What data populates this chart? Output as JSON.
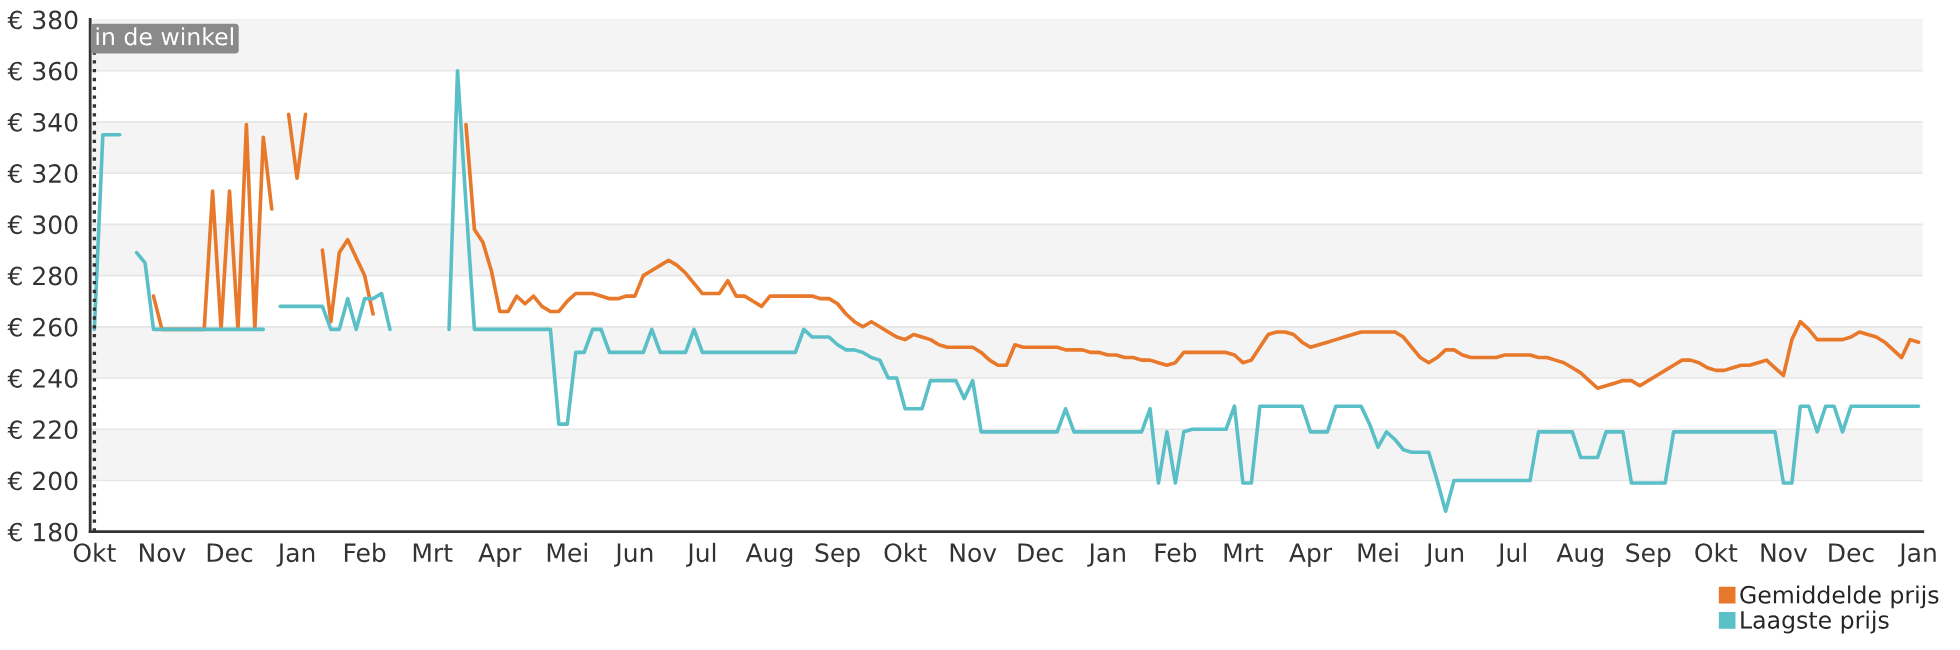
{
  "chart_data": {
    "type": "line",
    "categories": [
      "Okt",
      null,
      null,
      null,
      null,
      null,
      null,
      null,
      "Nov",
      null,
      null,
      null,
      null,
      null,
      null,
      null,
      "Dec",
      null,
      null,
      null,
      null,
      null,
      null,
      null,
      "Jan",
      null,
      null,
      null,
      null,
      null,
      null,
      null,
      "Feb",
      null,
      null,
      null,
      null,
      null,
      null,
      null,
      "Mrt",
      null,
      null,
      null,
      null,
      null,
      null,
      null,
      "Apr",
      null,
      null,
      null,
      null,
      null,
      null,
      null,
      "Mei",
      null,
      null,
      null,
      null,
      null,
      null,
      null,
      "Jun",
      null,
      null,
      null,
      null,
      null,
      null,
      null,
      "Jul",
      null,
      null,
      null,
      null,
      null,
      null,
      null,
      "Aug",
      null,
      null,
      null,
      null,
      null,
      null,
      null,
      "Sep",
      null,
      null,
      null,
      null,
      null,
      null,
      null,
      "Okt",
      null,
      null,
      null,
      null,
      null,
      null,
      null,
      "Nov",
      null,
      null,
      null,
      null,
      null,
      null,
      null,
      "Dec",
      null,
      null,
      null,
      null,
      null,
      null,
      null,
      "Jan",
      null,
      null,
      null,
      null,
      null,
      null,
      null,
      "Feb",
      null,
      null,
      null,
      null,
      null,
      null,
      null,
      "Mrt",
      null,
      null,
      null,
      null,
      null,
      null,
      null,
      "Apr",
      null,
      null,
      null,
      null,
      null,
      null,
      null,
      "Mei",
      null,
      null,
      null,
      null,
      null,
      null,
      null,
      "Jun",
      null,
      null,
      null,
      null,
      null,
      null,
      null,
      "Jul",
      null,
      null,
      null,
      null,
      null,
      null,
      null,
      "Aug",
      null,
      null,
      null,
      null,
      null,
      null,
      null,
      "Sep",
      null,
      null,
      null,
      null,
      null,
      null,
      null,
      "Okt",
      null,
      null,
      null,
      null,
      null,
      null,
      null,
      "Nov",
      null,
      null,
      null,
      null,
      null,
      null,
      null,
      "Dec",
      null,
      null,
      null,
      null,
      null,
      null,
      null,
      "Jan"
    ],
    "ylim": [
      180,
      380
    ],
    "yticks": [
      {
        "value": 180,
        "label": "€ 180"
      },
      {
        "value": 200,
        "label": "€ 200"
      },
      {
        "value": 220,
        "label": "€ 220"
      },
      {
        "value": 240,
        "label": "€ 240"
      },
      {
        "value": 260,
        "label": "€ 260"
      },
      {
        "value": 280,
        "label": "€ 280"
      },
      {
        "value": 300,
        "label": "€ 300"
      },
      {
        "value": 320,
        "label": "€ 320"
      },
      {
        "value": 340,
        "label": "€ 340"
      },
      {
        "value": 360,
        "label": "€ 360"
      },
      {
        "value": 380,
        "label": "€ 380"
      }
    ],
    "grid": "y",
    "legend": "bottom right",
    "line_style": "solid",
    "ref_lines": [
      {
        "axis": "x",
        "value": "Okt",
        "label": "in de winkel",
        "color": "#333333",
        "line_style": "dotted"
      }
    ],
    "series": [
      {
        "name": "Gemiddelde prijs",
        "color": "#e8782a",
        "values": [
          null,
          null,
          null,
          null,
          null,
          null,
          null,
          272,
          259,
          259,
          259,
          259,
          259,
          259,
          313,
          259,
          313,
          259,
          339,
          259,
          334,
          306,
          null,
          343,
          318,
          343,
          null,
          290,
          262,
          289,
          294,
          287,
          280,
          265,
          null,
          null,
          null,
          null,
          null,
          null,
          null,
          null,
          null,
          null,
          339,
          298,
          293,
          282,
          266,
          266,
          272,
          269,
          272,
          268,
          266,
          266,
          270,
          273,
          273,
          273,
          272,
          271,
          271,
          272,
          272,
          280,
          282,
          284,
          286,
          284,
          281,
          277,
          273,
          273,
          273,
          278,
          272,
          272,
          270,
          268,
          272,
          272,
          272,
          272,
          272,
          272,
          271,
          271,
          269,
          265,
          262,
          260,
          262,
          260,
          258,
          256,
          255,
          257,
          256,
          255,
          253,
          252,
          252,
          252,
          252,
          250,
          247,
          245,
          245,
          253,
          252,
          252,
          252,
          252,
          252,
          251,
          251,
          251,
          250,
          250,
          249,
          249,
          248,
          248,
          247,
          247,
          246,
          245,
          246,
          250,
          250,
          250,
          250,
          250,
          250,
          249,
          246,
          247,
          252,
          257,
          258,
          258,
          257,
          254,
          252,
          253,
          254,
          255,
          256,
          257,
          258,
          258,
          258,
          258,
          258,
          256,
          252,
          248,
          246,
          248,
          251,
          251,
          249,
          248,
          248,
          248,
          248,
          249,
          249,
          249,
          249,
          248,
          248,
          247,
          246,
          244,
          242,
          239,
          236,
          237,
          238,
          239,
          239,
          237,
          239,
          241,
          243,
          245,
          247,
          247,
          246,
          244,
          243,
          243,
          244,
          245,
          245,
          246,
          247,
          244,
          241,
          255,
          262,
          259,
          255,
          255,
          255,
          255,
          256,
          258,
          257,
          256,
          254,
          251,
          248,
          255,
          254
        ]
      },
      {
        "name": "Laagste prijs",
        "color": "#5bbfc7",
        "values": [
          259,
          335,
          335,
          335,
          null,
          289,
          285,
          259,
          259,
          259,
          259,
          259,
          259,
          259,
          259,
          259,
          259,
          259,
          259,
          259,
          259,
          null,
          268,
          268,
          268,
          268,
          268,
          268,
          259,
          259,
          271,
          259,
          271,
          271,
          273,
          259,
          null,
          null,
          null,
          null,
          null,
          null,
          259,
          360,
          308,
          259,
          259,
          259,
          259,
          259,
          259,
          259,
          259,
          259,
          259,
          222,
          222,
          250,
          250,
          259,
          259,
          250,
          250,
          250,
          250,
          250,
          259,
          250,
          250,
          250,
          250,
          259,
          250,
          250,
          250,
          250,
          250,
          250,
          250,
          250,
          250,
          250,
          250,
          250,
          259,
          256,
          256,
          256,
          253,
          251,
          251,
          250,
          248,
          247,
          240,
          240,
          228,
          228,
          228,
          239,
          239,
          239,
          239,
          232,
          239,
          219,
          219,
          219,
          219,
          219,
          219,
          219,
          219,
          219,
          219,
          228,
          219,
          219,
          219,
          219,
          219,
          219,
          219,
          219,
          219,
          228,
          199,
          219,
          199,
          219,
          220,
          220,
          220,
          220,
          220,
          229,
          199,
          199,
          229,
          229,
          229,
          229,
          229,
          229,
          219,
          219,
          219,
          229,
          229,
          229,
          229,
          222,
          213,
          219,
          216,
          212,
          211,
          211,
          211,
          200,
          188,
          200,
          200,
          200,
          200,
          200,
          200,
          200,
          200,
          200,
          200,
          219,
          219,
          219,
          219,
          219,
          209,
          209,
          209,
          219,
          219,
          219,
          199,
          199,
          199,
          199,
          199,
          219,
          219,
          219,
          219,
          219,
          219,
          219,
          219,
          219,
          219,
          219,
          219,
          219,
          199,
          199,
          229,
          229,
          219,
          229,
          229,
          219,
          229,
          229,
          229,
          229,
          229,
          229,
          229,
          229,
          229
        ]
      }
    ]
  }
}
